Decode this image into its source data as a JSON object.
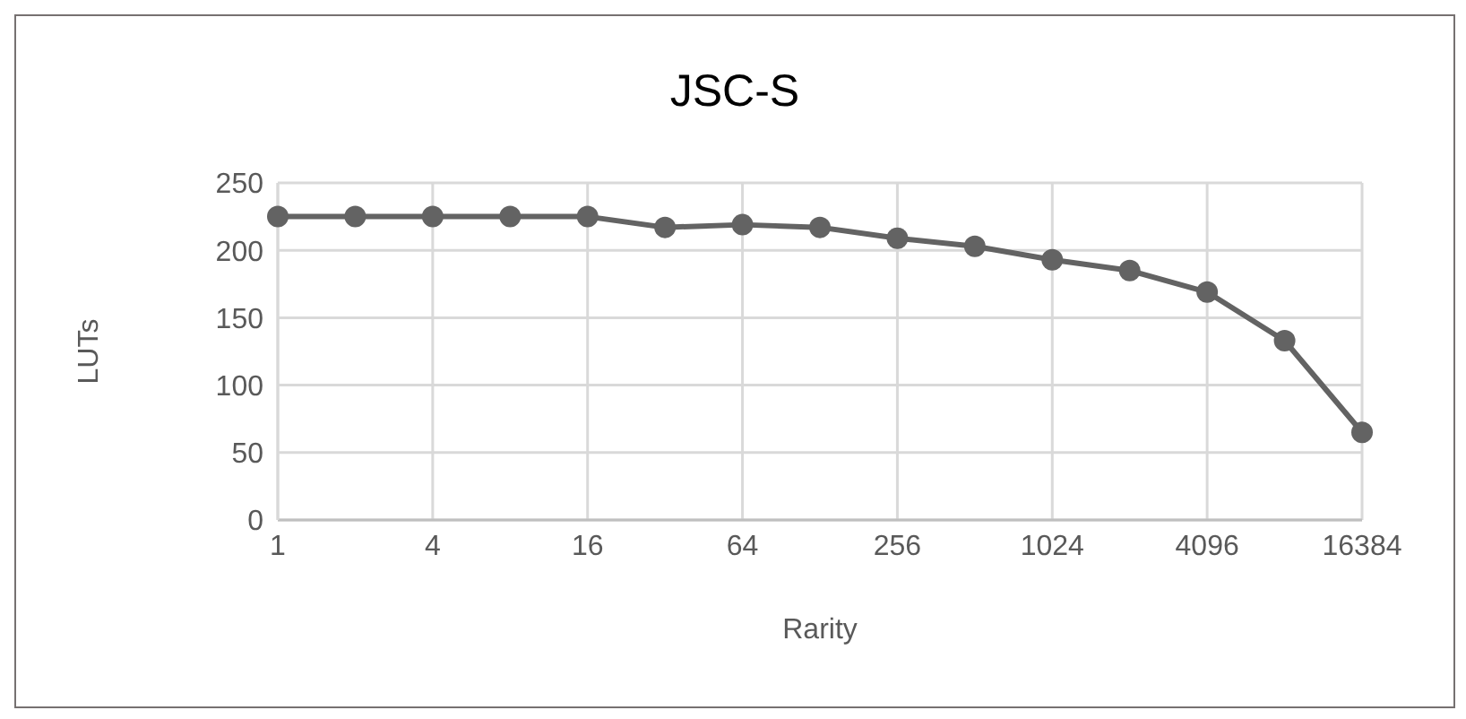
{
  "chart_data": {
    "type": "line",
    "title": "JSC-S",
    "xlabel": "Rarity",
    "ylabel": "LUTs",
    "x": [
      1,
      2,
      4,
      8,
      16,
      32,
      64,
      128,
      256,
      512,
      1024,
      2048,
      4096,
      8192,
      16384
    ],
    "series": [
      {
        "color": "#636363",
        "values": [
          225,
          225,
          225,
          225,
          225,
          217,
          219,
          217,
          209,
          203,
          193,
          185,
          169,
          133,
          65
        ]
      }
    ],
    "log": "x",
    "xlim": [
      1,
      16384
    ],
    "xticks": [
      1,
      4,
      16,
      64,
      256,
      1024,
      4096,
      16384
    ],
    "ylim": [
      0,
      250
    ],
    "yticks": [
      0,
      50,
      100,
      150,
      200,
      250
    ],
    "grid": true,
    "marker": "circle",
    "line_style": "solid"
  }
}
